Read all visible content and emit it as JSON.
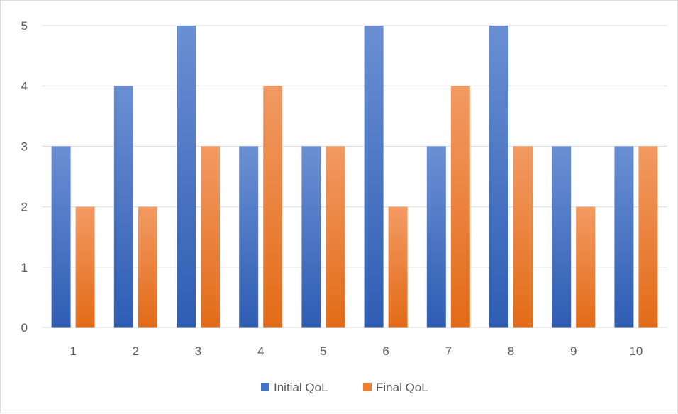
{
  "chart_data": {
    "type": "bar",
    "title": "",
    "xlabel": "",
    "ylabel": "",
    "categories": [
      "1",
      "2",
      "3",
      "4",
      "5",
      "6",
      "7",
      "8",
      "9",
      "10"
    ],
    "series": [
      {
        "name": "Initial QoL",
        "values": [
          3,
          4,
          5,
          3,
          3,
          5,
          3,
          5,
          3,
          3
        ],
        "color": "#4472c4"
      },
      {
        "name": "Final QoL",
        "values": [
          2,
          2,
          3,
          4,
          3,
          2,
          4,
          3,
          2,
          3
        ],
        "color": "#ed7d31"
      }
    ],
    "ylim": [
      0,
      5
    ],
    "yticks": [
      "0",
      "1",
      "2",
      "3",
      "4",
      "5"
    ],
    "grid": true,
    "legend_position": "bottom"
  }
}
